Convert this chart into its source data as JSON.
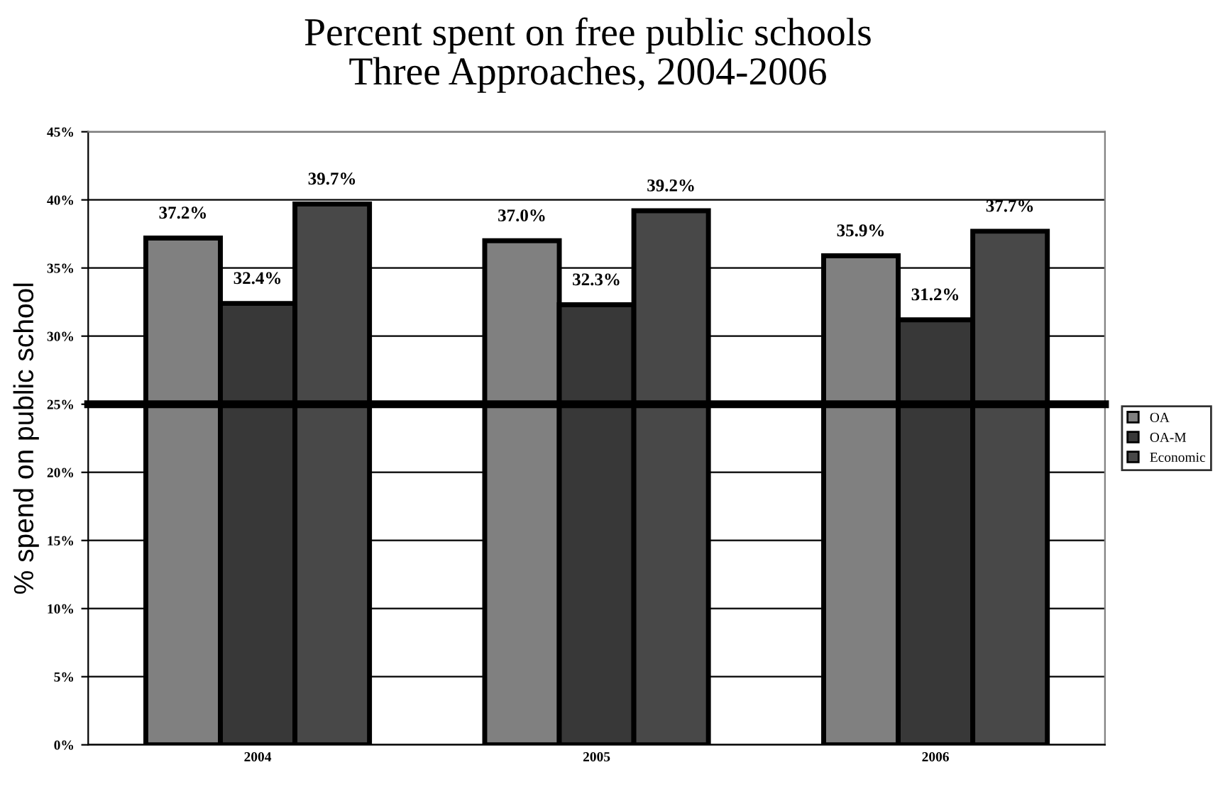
{
  "chart_data": {
    "type": "bar",
    "title": "Percent spent on free public schools",
    "subtitle": "Three Approaches, 2004-2006",
    "ylabel": "% spend on public school",
    "categories": [
      "2004",
      "2005",
      "2006"
    ],
    "series": [
      {
        "name": "OA",
        "color": "#808080",
        "values": [
          37.2,
          37.0,
          35.9
        ],
        "value_labels": [
          "37.2%",
          "37.0%",
          "35.9%"
        ]
      },
      {
        "name": "OA-M",
        "color": "#383838",
        "values": [
          32.4,
          32.3,
          31.2
        ],
        "value_labels": [
          "32.4%",
          "32.3%",
          "31.2%"
        ]
      },
      {
        "name": "Economic",
        "color": "#484848",
        "values": [
          39.7,
          39.2,
          37.7
        ],
        "value_labels": [
          "39.7%",
          "39.2%",
          "37.7%"
        ]
      }
    ],
    "ylim": [
      0,
      45
    ],
    "yticks": [
      {
        "value": 0,
        "label": "0%"
      },
      {
        "value": 5,
        "label": "5%"
      },
      {
        "value": 10,
        "label": "10%"
      },
      {
        "value": 15,
        "label": "15%"
      },
      {
        "value": 20,
        "label": "20%"
      },
      {
        "value": 25,
        "label": "25%"
      },
      {
        "value": 30,
        "label": "30%"
      },
      {
        "value": 35,
        "label": "35%"
      },
      {
        "value": 40,
        "label": "40%"
      },
      {
        "value": 45,
        "label": "45%"
      }
    ],
    "ref_lines": [
      {
        "axis": "y",
        "value": 25,
        "color": "#000000"
      }
    ],
    "grid": "y",
    "legend": "right"
  }
}
